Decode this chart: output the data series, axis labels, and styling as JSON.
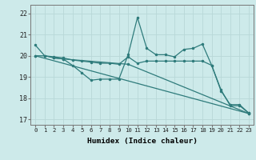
{
  "xlabel": "Humidex (Indice chaleur)",
  "bg_color": "#cdeaea",
  "grid_color": "#b8d8d8",
  "line_color": "#2e7b7b",
  "xlim": [
    -0.5,
    23.5
  ],
  "ylim": [
    16.75,
    22.4
  ],
  "yticks": [
    17,
    18,
    19,
    20,
    21,
    22
  ],
  "xticks": [
    0,
    1,
    2,
    3,
    4,
    5,
    6,
    7,
    8,
    9,
    10,
    11,
    12,
    13,
    14,
    15,
    16,
    17,
    18,
    19,
    20,
    21,
    22,
    23
  ],
  "series": [
    {
      "x": [
        0,
        1,
        2,
        3,
        4,
        5,
        6,
        7,
        8,
        9,
        10,
        11,
        12,
        13,
        14,
        15,
        16,
        17,
        18,
        19,
        20,
        21,
        22,
        23
      ],
      "y": [
        20.5,
        20.0,
        19.9,
        19.85,
        19.55,
        19.2,
        18.85,
        18.9,
        18.9,
        18.9,
        20.05,
        21.8,
        20.35,
        20.05,
        20.05,
        19.95,
        20.3,
        20.35,
        20.55,
        19.55,
        18.35,
        17.7,
        17.7,
        17.3
      ]
    },
    {
      "x": [
        0,
        1,
        2,
        3,
        4,
        5,
        6,
        7,
        8,
        9,
        10,
        11,
        12,
        13,
        14,
        15,
        16,
        17,
        18,
        19,
        20,
        21,
        22,
        23
      ],
      "y": [
        20.0,
        20.0,
        19.95,
        19.9,
        19.8,
        19.75,
        19.7,
        19.65,
        19.65,
        19.6,
        19.95,
        19.65,
        19.75,
        19.75,
        19.75,
        19.75,
        19.75,
        19.75,
        19.75,
        19.55,
        18.4,
        17.65,
        17.65,
        17.3
      ]
    },
    {
      "x": [
        2,
        3,
        10,
        23
      ],
      "y": [
        19.9,
        19.85,
        19.6,
        17.28
      ]
    },
    {
      "x": [
        0,
        23
      ],
      "y": [
        20.0,
        17.28
      ]
    }
  ]
}
